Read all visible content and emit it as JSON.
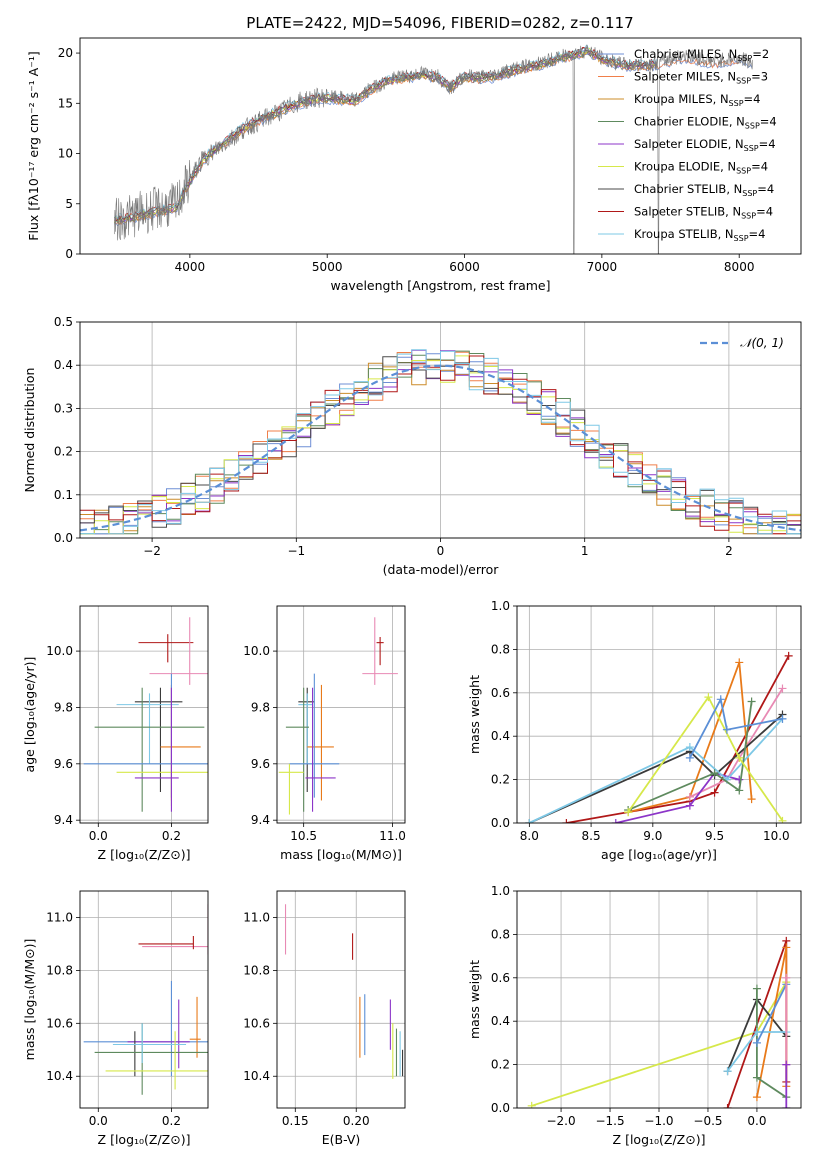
{
  "figure": {
    "title": "PLATE=2422, MJD=54096, FIBERID=0282, z=0.117"
  },
  "colors": {
    "Chabrier MILES": "#6f8fd6",
    "Salpeter MILES": "#f07f4a",
    "Kroupa MILES": "#cc8c2a",
    "Chabrier ELODIE": "#5e8a5e",
    "Salpeter ELODIE": "#8c35c8",
    "Kroupa ELODIE": "#d6e84a",
    "Chabrier STELIB": "#4a4a4a",
    "Salpeter STELIB": "#b01818",
    "Kroupa STELIB": "#7ec8e6",
    "pink": "#e88ab4",
    "orange": "#e87a1a",
    "blue": "#5b8fd6",
    "green": "#5e8a5e",
    "purple": "#8c35c8",
    "yellow": "#d6e84a",
    "dark": "#3a3a3a",
    "red": "#b01818",
    "cyan": "#7ec8e6",
    "normal": "#5b8fd6"
  },
  "chart_data": [
    {
      "id": "spectrum",
      "type": "line",
      "title": "PLATE=2422, MJD=54096, FIBERID=0282, z=0.117",
      "xlabel": "wavelength [Angstrom, rest frame]",
      "ylabel": "Flux [fλ10⁻¹⁷ erg cm⁻² s⁻¹ A⁻¹]",
      "xlim": [
        3200,
        8450
      ],
      "ylim": [
        0,
        21.5
      ],
      "xticks": [
        4000,
        5000,
        6000,
        7000,
        8000
      ],
      "yticks": [
        0,
        5,
        10,
        15,
        20
      ],
      "grid": false,
      "legend_position": "right",
      "legend": [
        {
          "series": "Chabrier MILES",
          "label": "Chabrier MILES, N",
          "sub": "SSP",
          "suffix": "=2"
        },
        {
          "series": "Salpeter MILES",
          "label": "Salpeter MILES, N",
          "sub": "SSP",
          "suffix": "=3"
        },
        {
          "series": "Kroupa MILES",
          "label": "Kroupa MILES, N",
          "sub": "SSP",
          "suffix": "=4"
        },
        {
          "series": "Chabrier ELODIE",
          "label": "Chabrier ELODIE, N",
          "sub": "SSP",
          "suffix": "=4"
        },
        {
          "series": "Salpeter ELODIE",
          "label": "Salpeter ELODIE, N",
          "sub": "SSP",
          "suffix": "=4"
        },
        {
          "series": "Kroupa ELODIE",
          "label": "Kroupa ELODIE, N",
          "sub": "SSP",
          "suffix": "=4"
        },
        {
          "series": "Chabrier STELIB",
          "label": "Chabrier STELIB, N",
          "sub": "SSP",
          "suffix": "=4"
        },
        {
          "series": "Salpeter STELIB",
          "label": "Salpeter STELIB, N",
          "sub": "SSP",
          "suffix": "=4"
        },
        {
          "series": "Kroupa STELIB",
          "label": "Kroupa STELIB, N",
          "sub": "SSP",
          "suffix": "=4"
        }
      ],
      "data_wavelength": [
        3450,
        3600,
        3750,
        3900,
        4000,
        4100,
        4200,
        4300,
        4400,
        4500,
        4600,
        4700,
        4800,
        4900,
        5000,
        5100,
        5200,
        5300,
        5400,
        5500,
        5600,
        5700,
        5800,
        5900,
        6000,
        6100,
        6200,
        6300,
        6400,
        6500,
        6600,
        6700,
        6800,
        6900,
        7000,
        7100,
        7200,
        7400,
        7600,
        7800,
        8000,
        8100
      ],
      "data_flux": [
        3.3,
        3.9,
        4.5,
        4.9,
        7.5,
        9.5,
        10.5,
        11.5,
        12.5,
        13.2,
        13.8,
        14.5,
        15.2,
        15.5,
        15.6,
        15.5,
        15.3,
        16.3,
        17.0,
        17.5,
        17.8,
        18.0,
        17.8,
        16.5,
        17.8,
        17.6,
        17.8,
        18.2,
        18.6,
        18.8,
        19.2,
        19.6,
        20.0,
        20.3,
        19.5,
        19.0,
        18.8,
        19.0,
        19.8,
        19.2,
        19.5,
        19.0
      ],
      "model_flux": [
        3.3,
        3.7,
        4.2,
        4.6,
        7.2,
        9.4,
        10.6,
        11.6,
        12.6,
        13.3,
        13.9,
        14.5,
        15.0,
        15.4,
        15.5,
        15.4,
        15.2,
        16.2,
        17.0,
        17.4,
        17.6,
        17.8,
        17.6,
        16.6,
        17.6,
        17.5,
        17.6,
        18.0,
        18.4,
        18.7,
        19.0,
        19.5,
        19.8,
        20.2,
        19.4,
        19.0,
        18.7,
        18.9,
        19.6,
        19.0,
        19.4,
        18.9
      ]
    },
    {
      "id": "residuals",
      "type": "line",
      "xlabel": "(data-model)/error",
      "ylabel": "Normed distribution",
      "xlim": [
        -2.5,
        2.5
      ],
      "ylim": [
        0,
        0.5
      ],
      "xticks": [
        -2,
        -1,
        0,
        1,
        2
      ],
      "xtick_labels": [
        "−2",
        "−1",
        "0",
        "1",
        "2"
      ],
      "yticks": [
        0.0,
        0.1,
        0.2,
        0.3,
        0.4,
        0.5
      ],
      "ytick_labels": [
        "0.0",
        "0.1",
        "0.2",
        "0.3",
        "0.4",
        "0.5"
      ],
      "grid": true,
      "legend_position": "top-right",
      "legend": [
        {
          "label": "𝒩(0, 1)",
          "style": "dashed"
        }
      ]
    },
    {
      "id": "age-vs-Z",
      "type": "scatter",
      "xlabel": "Z [log₁₀(Z/Z⊙)]",
      "ylabel": "age  [log₁₀(age/yr)]",
      "xlim": [
        -0.05,
        0.3
      ],
      "ylim": [
        9.39,
        10.16
      ],
      "xticks": [
        0.0,
        0.2
      ],
      "xtick_labels": [
        "0.0",
        "0.2"
      ],
      "yticks": [
        9.4,
        9.6,
        9.8,
        10.0
      ],
      "ytick_labels": [
        "9.4",
        "9.6",
        "9.8",
        "10.0"
      ],
      "grid": true,
      "points": [
        {
          "c": "red",
          "x": 0.19,
          "y": 10.03,
          "xlo": 0.11,
          "xhi": 0.26,
          "ylo": 9.96,
          "yhi": 10.06
        },
        {
          "c": "pink",
          "x": 0.25,
          "y": 9.92,
          "xlo": 0.14,
          "xhi": 0.3,
          "ylo": 9.88,
          "yhi": 10.12
        },
        {
          "c": "dark",
          "x": 0.17,
          "y": 9.82,
          "xlo": 0.1,
          "xhi": 0.23,
          "ylo": 9.5,
          "yhi": 9.87
        },
        {
          "c": "cyan",
          "x": 0.14,
          "y": 9.81,
          "xlo": 0.05,
          "xhi": 0.22,
          "ylo": 9.6,
          "yhi": 9.85
        },
        {
          "c": "green",
          "x": 0.12,
          "y": 9.73,
          "xlo": -0.01,
          "xhi": 0.29,
          "ylo": 9.43,
          "yhi": 9.87
        },
        {
          "c": "orange",
          "x": 0.2,
          "y": 9.66,
          "xlo": 0.17,
          "xhi": 0.28,
          "ylo": 9.47,
          "yhi": 9.88
        },
        {
          "c": "blue",
          "x": 0.2,
          "y": 9.6,
          "xlo": -0.04,
          "xhi": 0.3,
          "ylo": 9.48,
          "yhi": 9.92
        },
        {
          "c": "yellow",
          "x": 0.2,
          "y": 9.57,
          "xlo": 0.05,
          "xhi": 0.3,
          "ylo": 9.45,
          "yhi": 9.6
        },
        {
          "c": "purple",
          "x": 0.2,
          "y": 9.55,
          "xlo": 0.1,
          "xhi": 0.22,
          "ylo": 9.43,
          "yhi": 9.87
        }
      ]
    },
    {
      "id": "age-vs-mass",
      "type": "scatter",
      "xlabel": "mass [log₁₀(M/M⊙)]",
      "xlim": [
        10.35,
        11.07
      ],
      "ylim": [
        9.39,
        10.16
      ],
      "xticks": [
        10.5,
        11.0
      ],
      "xtick_labels": [
        "10.5",
        "11.0"
      ],
      "yticks": [
        9.4,
        9.6,
        9.8,
        10.0
      ],
      "ytick_labels": [
        "9.4",
        "9.6",
        "9.8",
        "10.0"
      ],
      "grid": true,
      "points": [
        {
          "c": "red",
          "x": 10.93,
          "y": 10.03,
          "xlo": 10.91,
          "xhi": 10.95,
          "ylo": 9.95,
          "yhi": 10.05
        },
        {
          "c": "pink",
          "x": 10.9,
          "y": 9.92,
          "xlo": 10.83,
          "xhi": 11.03,
          "ylo": 9.88,
          "yhi": 10.12
        },
        {
          "c": "dark",
          "x": 10.52,
          "y": 9.82,
          "xlo": 10.47,
          "xhi": 10.56,
          "ylo": 9.5,
          "yhi": 9.87
        },
        {
          "c": "cyan",
          "x": 10.52,
          "y": 9.81,
          "xlo": 10.47,
          "xhi": 10.55,
          "ylo": 9.6,
          "yhi": 9.85
        },
        {
          "c": "green",
          "x": 10.5,
          "y": 9.73,
          "xlo": 10.4,
          "xhi": 10.53,
          "ylo": 9.43,
          "yhi": 9.87
        },
        {
          "c": "orange",
          "x": 10.6,
          "y": 9.66,
          "xlo": 10.52,
          "xhi": 10.67,
          "ylo": 9.47,
          "yhi": 9.88
        },
        {
          "c": "blue",
          "x": 10.56,
          "y": 9.6,
          "xlo": 10.42,
          "xhi": 10.7,
          "ylo": 9.48,
          "yhi": 9.92
        },
        {
          "c": "yellow",
          "x": 10.42,
          "y": 9.57,
          "xlo": 10.36,
          "xhi": 10.5,
          "ylo": 9.42,
          "yhi": 9.6
        },
        {
          "c": "purple",
          "x": 10.55,
          "y": 9.55,
          "xlo": 10.51,
          "xhi": 10.68,
          "ylo": 9.43,
          "yhi": 9.87
        }
      ]
    },
    {
      "id": "weight-vs-age",
      "type": "line",
      "xlabel": "age  [log₁₀(age/yr)]",
      "ylabel": "mass weight",
      "xlim": [
        7.9,
        10.2
      ],
      "ylim": [
        0,
        1
      ],
      "xticks": [
        8.0,
        8.5,
        9.0,
        9.5,
        10.0
      ],
      "xtick_labels": [
        "8.0",
        "8.5",
        "9.0",
        "9.5",
        "10.0"
      ],
      "yticks": [
        0.0,
        0.2,
        0.4,
        0.6,
        0.8,
        1.0
      ],
      "ytick_labels": [
        "0.0",
        "0.2",
        "0.4",
        "0.6",
        "0.8",
        "1.0"
      ],
      "grid": true,
      "series": [
        {
          "c": "red",
          "x": [
            8.3,
            9.3,
            9.5,
            10.1
          ],
          "y": [
            0.0,
            0.1,
            0.14,
            0.77
          ]
        },
        {
          "c": "orange",
          "x": [
            8.8,
            9.3,
            9.7,
            9.8
          ],
          "y": [
            0.05,
            0.12,
            0.74,
            0.11
          ]
        },
        {
          "c": "pink",
          "x": [
            9.3,
            9.6,
            9.7,
            10.05
          ],
          "y": [
            0.12,
            0.2,
            0.3,
            0.62
          ]
        },
        {
          "c": "purple",
          "x": [
            8.7,
            9.3,
            9.5,
            9.7
          ],
          "y": [
            0.0,
            0.08,
            0.23,
            0.2
          ]
        },
        {
          "c": "dark",
          "x": [
            8.0,
            9.3,
            9.5,
            10.05
          ],
          "y": [
            0.0,
            0.33,
            0.22,
            0.5
          ]
        },
        {
          "c": "cyan",
          "x": [
            8.0,
            9.3,
            9.6,
            10.05
          ],
          "y": [
            0.0,
            0.35,
            0.2,
            0.48
          ]
        },
        {
          "c": "green",
          "x": [
            8.8,
            9.5,
            9.7,
            9.8
          ],
          "y": [
            0.06,
            0.23,
            0.15,
            0.56
          ]
        },
        {
          "c": "yellow",
          "x": [
            8.8,
            9.45,
            9.7,
            10.05
          ],
          "y": [
            0.05,
            0.58,
            0.3,
            0.01
          ]
        },
        {
          "c": "blue",
          "x": [
            9.3,
            9.55,
            9.6,
            10.05
          ],
          "y": [
            0.3,
            0.57,
            0.43,
            0.48
          ]
        }
      ]
    },
    {
      "id": "mass-vs-Z",
      "type": "scatter",
      "xlabel": "Z [log₁₀(Z/Z⊙)]",
      "ylabel": "mass [log₁₀(M/M⊙)]",
      "xlim": [
        -0.05,
        0.3
      ],
      "ylim": [
        10.28,
        11.1
      ],
      "xticks": [
        0.0,
        0.2
      ],
      "xtick_labels": [
        "0.0",
        "0.2"
      ],
      "yticks": [
        10.4,
        10.6,
        10.8,
        11.0
      ],
      "ytick_labels": [
        "10.4",
        "10.6",
        "10.8",
        "11.0"
      ],
      "grid": true,
      "points": [
        {
          "c": "pink",
          "x": 0.3,
          "y": 10.89,
          "xlo": 0.12,
          "xhi": 0.3,
          "ylo": 10.86,
          "yhi": 11.05
        },
        {
          "c": "red",
          "x": 0.26,
          "y": 10.9,
          "xlo": 0.11,
          "xhi": 0.26,
          "ylo": 10.88,
          "yhi": 10.93
        },
        {
          "c": "blue",
          "x": 0.2,
          "y": 10.53,
          "xlo": -0.04,
          "xhi": 0.3,
          "ylo": 10.4,
          "yhi": 10.76
        },
        {
          "c": "orange",
          "x": 0.27,
          "y": 10.54,
          "xlo": 0.25,
          "xhi": 0.28,
          "ylo": 10.47,
          "yhi": 10.7
        },
        {
          "c": "purple",
          "x": 0.22,
          "y": 10.53,
          "xlo": 0.08,
          "xhi": 0.25,
          "ylo": 10.43,
          "yhi": 10.69
        },
        {
          "c": "dark",
          "x": 0.1,
          "y": 10.52,
          "xlo": 0.08,
          "xhi": 0.22,
          "ylo": 10.4,
          "yhi": 10.57
        },
        {
          "c": "green",
          "x": 0.12,
          "y": 10.49,
          "xlo": -0.01,
          "xhi": 0.3,
          "ylo": 10.33,
          "yhi": 10.6
        },
        {
          "c": "cyan",
          "x": 0.12,
          "y": 10.52,
          "xlo": 0.04,
          "xhi": 0.24,
          "ylo": 10.45,
          "yhi": 10.6
        },
        {
          "c": "yellow",
          "x": 0.21,
          "y": 10.42,
          "xlo": 0.02,
          "xhi": 0.3,
          "ylo": 10.35,
          "yhi": 10.57
        }
      ]
    },
    {
      "id": "mass-vs-EBV",
      "type": "scatter",
      "xlabel": "E(B-V)",
      "xlim": [
        0.135,
        0.24
      ],
      "ylim": [
        10.28,
        11.1
      ],
      "xticks": [
        0.15,
        0.2
      ],
      "xtick_labels": [
        "0.15",
        "0.20"
      ],
      "yticks": [
        10.4,
        10.6,
        10.8,
        11.0
      ],
      "ytick_labels": [
        "10.4",
        "10.6",
        "10.8",
        "11.0"
      ],
      "grid": true,
      "points": [
        {
          "c": "pink",
          "x": 0.142,
          "y": 10.95,
          "ylo": 10.86,
          "yhi": 11.05
        },
        {
          "c": "red",
          "x": 0.197,
          "y": 10.89,
          "ylo": 10.84,
          "yhi": 10.94
        },
        {
          "c": "orange",
          "x": 0.203,
          "y": 10.58,
          "ylo": 10.47,
          "yhi": 10.7
        },
        {
          "c": "blue",
          "x": 0.207,
          "y": 10.6,
          "ylo": 10.48,
          "yhi": 10.71
        },
        {
          "c": "purple",
          "x": 0.228,
          "y": 10.59,
          "ylo": 10.5,
          "yhi": 10.69
        },
        {
          "c": "yellow",
          "x": 0.23,
          "y": 10.5,
          "ylo": 10.39,
          "yhi": 10.6
        },
        {
          "c": "green",
          "x": 0.233,
          "y": 10.48,
          "ylo": 10.4,
          "yhi": 10.58
        },
        {
          "c": "cyan",
          "x": 0.236,
          "y": 10.48,
          "ylo": 10.4,
          "yhi": 10.57
        },
        {
          "c": "dark",
          "x": 0.238,
          "y": 10.45,
          "ylo": 10.4,
          "yhi": 10.5
        }
      ]
    },
    {
      "id": "weight-vs-Z",
      "type": "line",
      "xlabel": "Z [log₁₀(Z/Z⊙)]",
      "ylabel": "mass weight",
      "xlim": [
        -2.45,
        0.45
      ],
      "ylim": [
        0,
        1
      ],
      "xticks": [
        -2.0,
        -1.5,
        -1.0,
        -0.5,
        0.0
      ],
      "xtick_labels": [
        "−2.0",
        "−1.5",
        "−1.0",
        "−0.5",
        "0.0"
      ],
      "yticks": [
        0.0,
        0.2,
        0.4,
        0.6,
        0.8,
        1.0
      ],
      "ytick_labels": [
        "0.0",
        "0.2",
        "0.4",
        "0.6",
        "0.8",
        "1.0"
      ],
      "grid": true,
      "series": [
        {
          "c": "yellow",
          "x": [
            -2.3,
            0.0,
            0.3
          ],
          "y": [
            0.01,
            0.35,
            0.58
          ]
        },
        {
          "c": "red",
          "x": [
            -0.3,
            0.3,
            0.3
          ],
          "y": [
            0.0,
            0.77,
            0.12
          ]
        },
        {
          "c": "dark",
          "x": [
            -0.3,
            0.0,
            0.3
          ],
          "y": [
            0.17,
            0.5,
            0.33
          ]
        },
        {
          "c": "orange",
          "x": [
            0.0,
            0.3,
            0.3
          ],
          "y": [
            0.05,
            0.74,
            0.1
          ]
        },
        {
          "c": "green",
          "x": [
            0.0,
            0.0,
            0.3
          ],
          "y": [
            0.55,
            0.14,
            0.05
          ]
        },
        {
          "c": "cyan",
          "x": [
            -0.3,
            0.0,
            0.3
          ],
          "y": [
            0.17,
            0.35,
            0.35
          ]
        },
        {
          "c": "blue",
          "x": [
            0.0,
            0.3
          ],
          "y": [
            0.3,
            0.57
          ]
        },
        {
          "c": "pink",
          "x": [
            0.3,
            0.3
          ],
          "y": [
            0.2,
            0.6
          ]
        },
        {
          "c": "purple",
          "x": [
            0.3,
            0.3
          ],
          "y": [
            0.0,
            0.2
          ]
        }
      ]
    }
  ]
}
